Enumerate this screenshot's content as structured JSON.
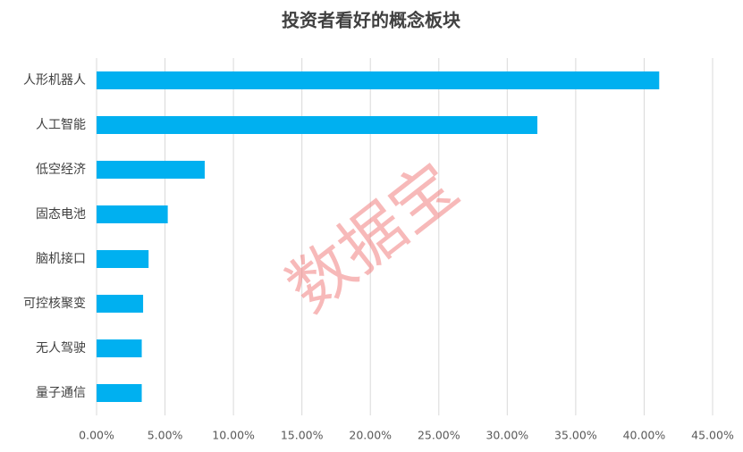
{
  "chart_data": {
    "type": "barh",
    "title": "投资者看好的概念板块",
    "categories": [
      "人形机器人",
      "人工智能",
      "低空经济",
      "固态电池",
      "脑机接口",
      "可控核聚变",
      "无人驾驶",
      "量子通信"
    ],
    "values": [
      41.1,
      32.2,
      7.9,
      5.2,
      3.8,
      3.4,
      3.3,
      3.3
    ],
    "color": "#00b0f0",
    "xlim": [
      0,
      45
    ],
    "xticks": [
      {
        "value": 0,
        "label": "0.00%"
      },
      {
        "value": 5,
        "label": "5.00%"
      },
      {
        "value": 10,
        "label": "10.00%"
      },
      {
        "value": 15,
        "label": "15.00%"
      },
      {
        "value": 20,
        "label": "20.00%"
      },
      {
        "value": 25,
        "label": "25.00%"
      },
      {
        "value": 30,
        "label": "30.00%"
      },
      {
        "value": 35,
        "label": "35.00%"
      },
      {
        "value": 40,
        "label": "40.00%"
      },
      {
        "value": 45,
        "label": "45.00%"
      }
    ],
    "grid": true,
    "watermark": "数据宝"
  }
}
